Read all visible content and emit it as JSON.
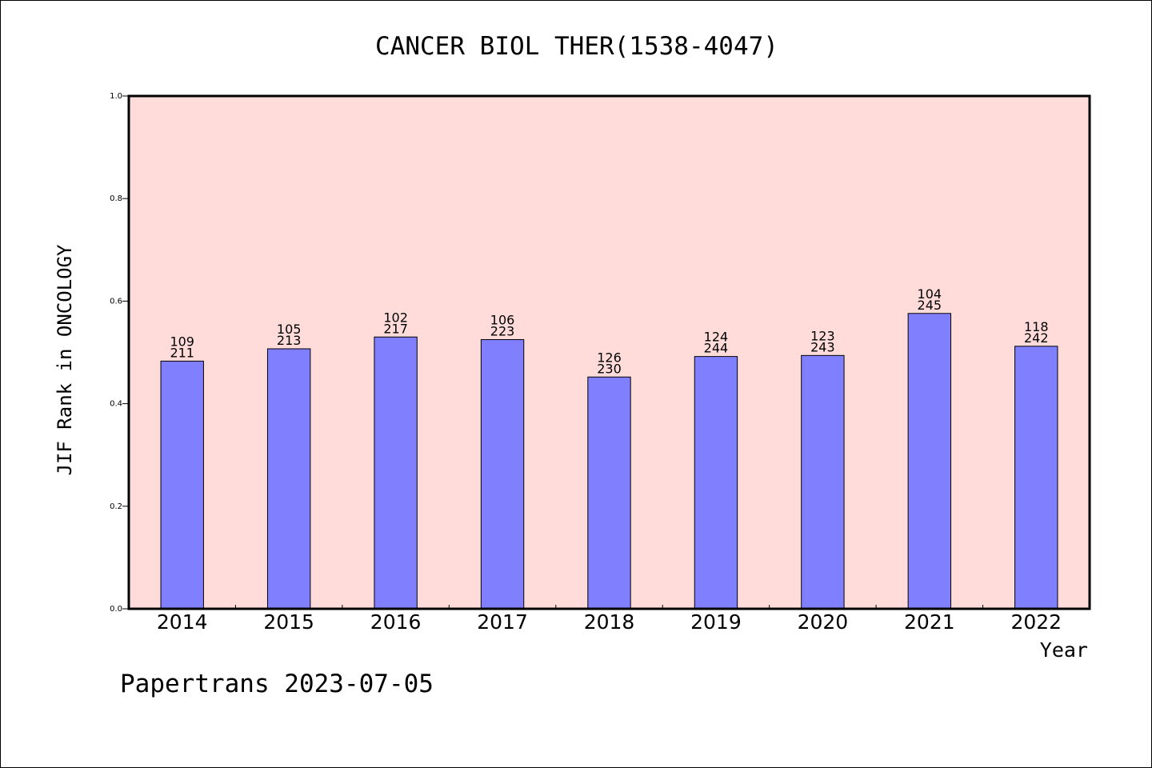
{
  "chart_data": {
    "type": "bar",
    "title": "CANCER BIOL THER(1538-4047)",
    "xlabel": "Year",
    "ylabel": "JIF Rank in ONCOLOGY",
    "ylim": [
      0,
      1.0
    ],
    "yticks": [
      "0.0",
      "0.2",
      "0.4",
      "0.6",
      "0.8",
      "1.0"
    ],
    "categories": [
      "2014",
      "2015",
      "2016",
      "2017",
      "2018",
      "2019",
      "2020",
      "2021",
      "2022"
    ],
    "values": [
      0.483,
      0.507,
      0.53,
      0.525,
      0.452,
      0.492,
      0.494,
      0.576,
      0.512
    ],
    "rank": [
      "109",
      "105",
      "102",
      "106",
      "126",
      "124",
      "123",
      "104",
      "118"
    ],
    "total": [
      "211",
      "213",
      "217",
      "223",
      "230",
      "244",
      "243",
      "245",
      "242"
    ],
    "grid": false,
    "colors": {
      "plot_background": "#FFDCDA",
      "bar": "#8080FF",
      "axis": "#000000"
    }
  },
  "footer": "Papertrans 2023-07-05"
}
